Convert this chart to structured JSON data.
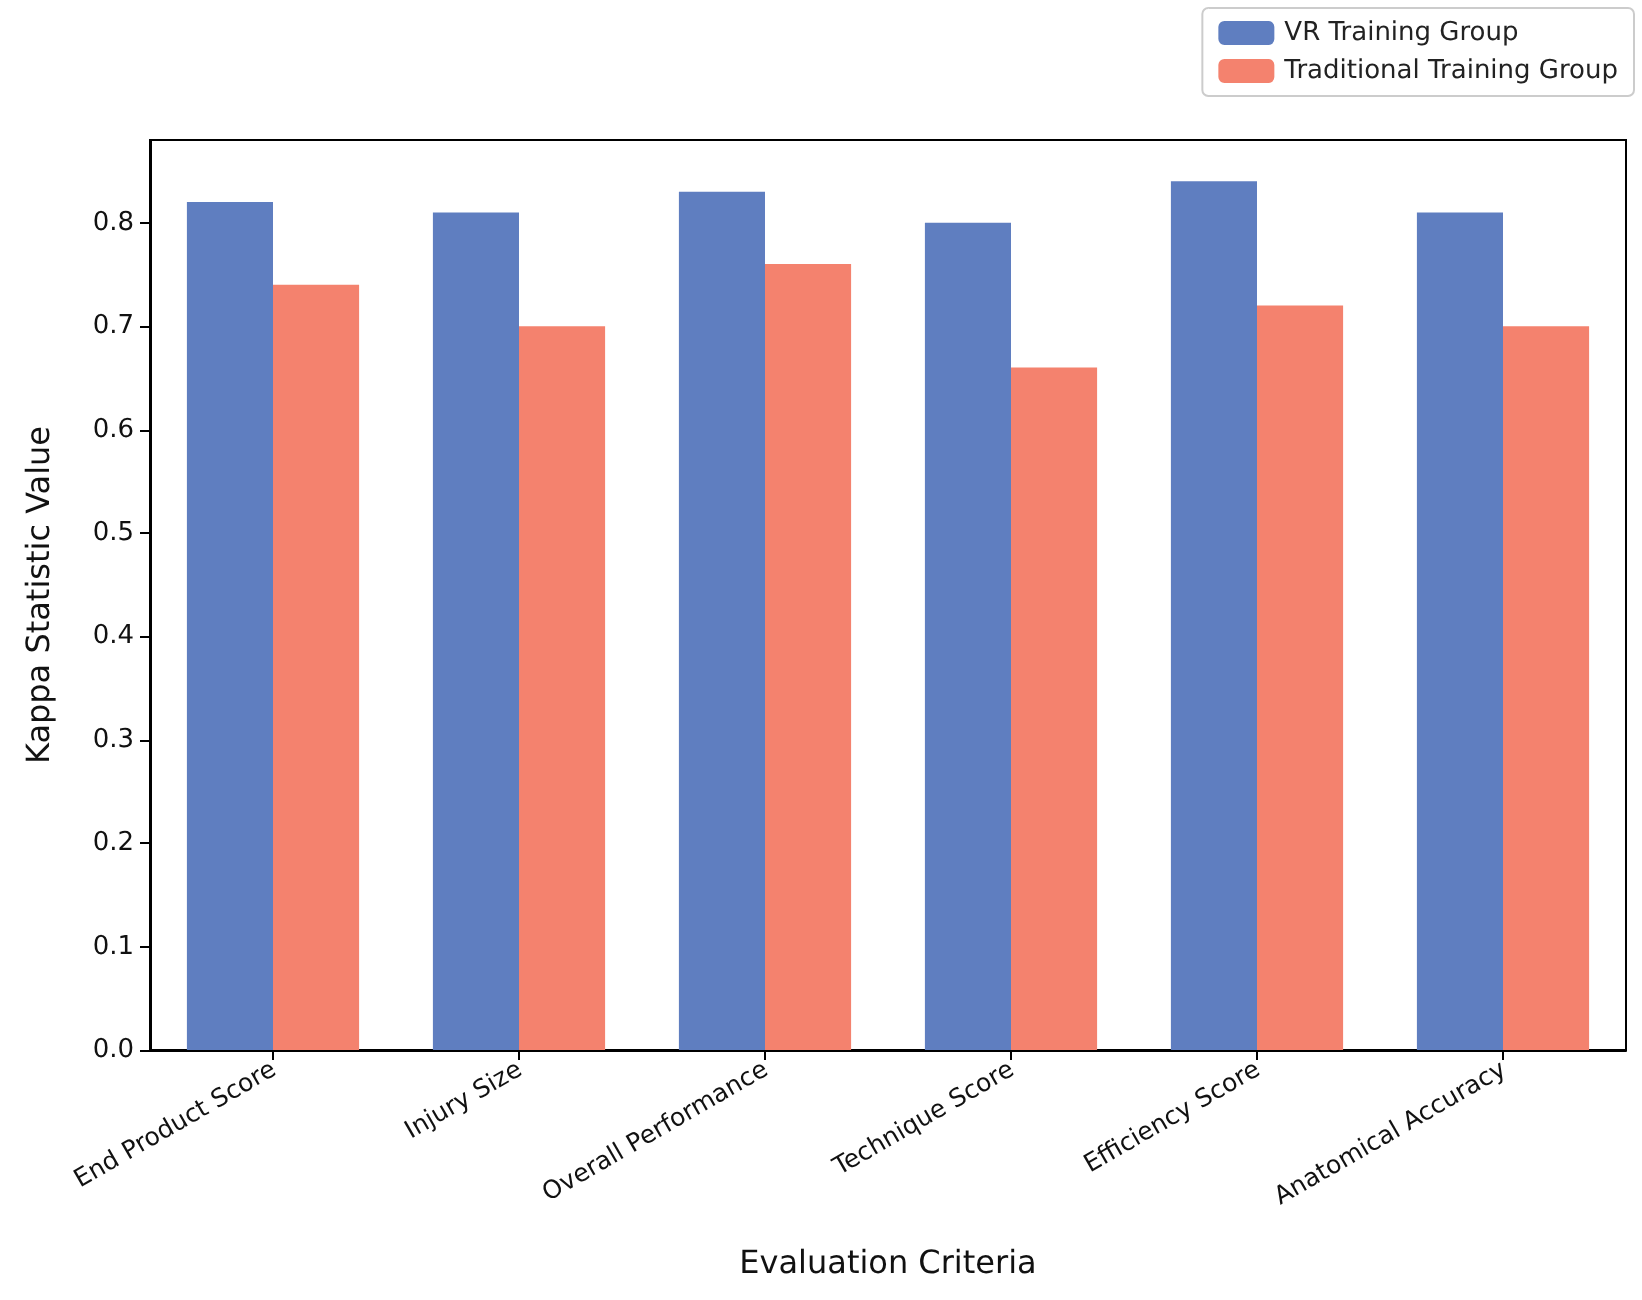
{
  "chart_data": {
    "type": "bar",
    "xlabel": "Evaluation Criteria",
    "ylabel": "Kappa Statistic Value",
    "categories": [
      "End Product Score",
      "Injury Size",
      "Overall Performance",
      "Technique Score",
      "Efficiency Score",
      "Anatomical Accuracy"
    ],
    "series": [
      {
        "name": "VR Training Group",
        "color": "#5f7ec0",
        "values": [
          0.82,
          0.81,
          0.83,
          0.8,
          0.84,
          0.81
        ]
      },
      {
        "name": "Traditional Training Group",
        "color": "#f4826e",
        "values": [
          0.74,
          0.7,
          0.76,
          0.66,
          0.72,
          0.7
        ]
      }
    ],
    "ylim": [
      0,
      0.88
    ],
    "yticks": [
      {
        "value": 0,
        "label": "0.0"
      },
      {
        "value": 0.1,
        "label": "0.1"
      },
      {
        "value": 0.2,
        "label": "0.2"
      },
      {
        "value": 0.3,
        "label": "0.3"
      },
      {
        "value": 0.4,
        "label": "0.4"
      },
      {
        "value": 0.5,
        "label": "0.5"
      },
      {
        "value": 0.6,
        "label": "0.6"
      },
      {
        "value": 0.7,
        "label": "0.7"
      },
      {
        "value": 0.8,
        "label": "0.8"
      }
    ],
    "grid": false,
    "legend": "top right"
  }
}
